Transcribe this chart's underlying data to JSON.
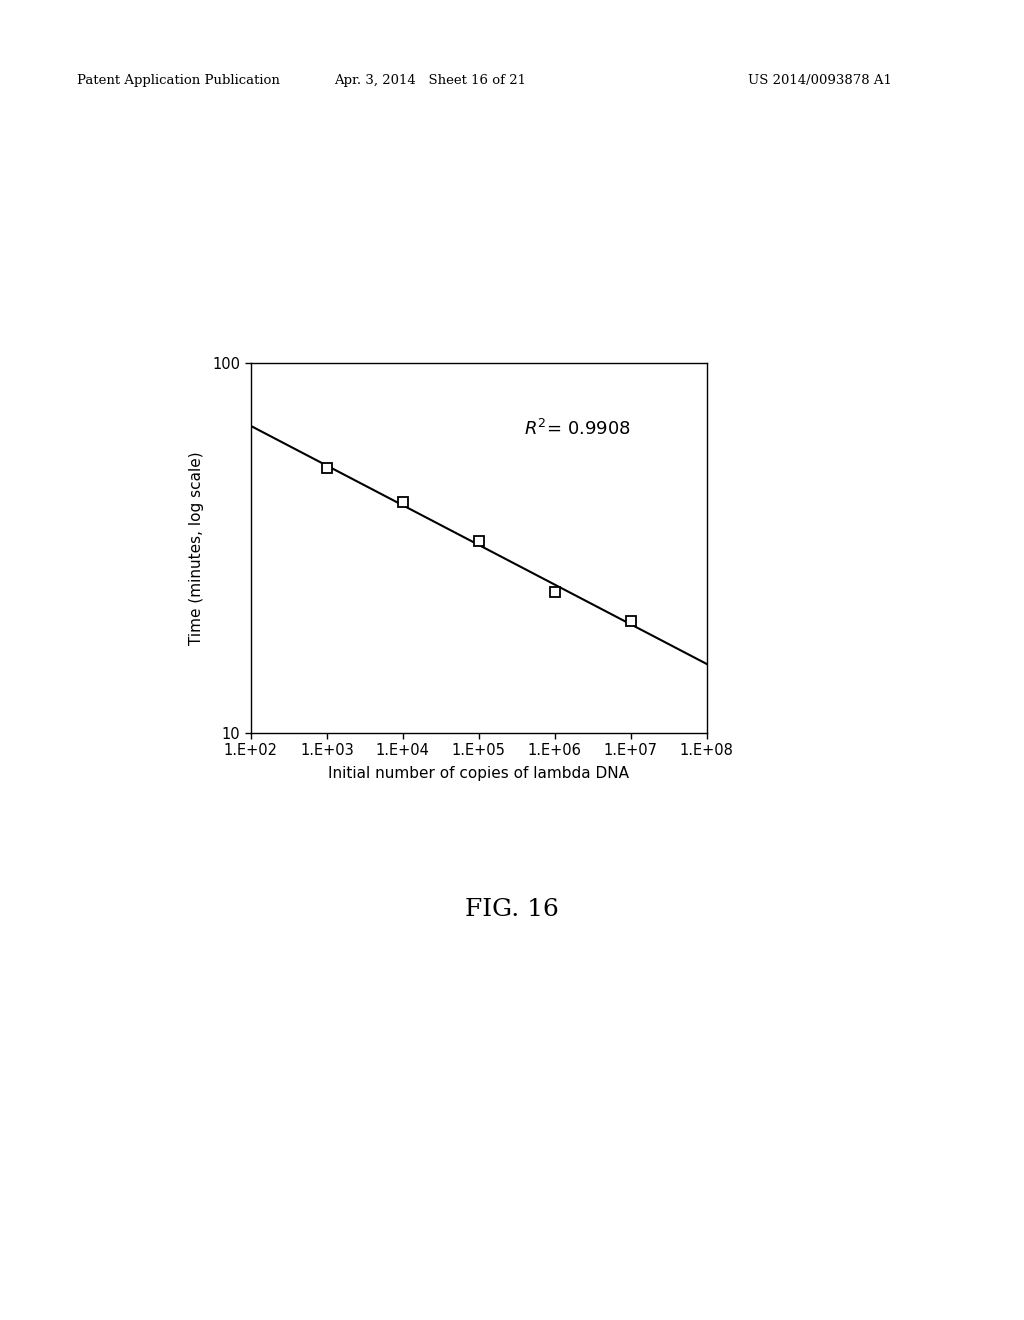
{
  "header_left": "Patent Application Publication",
  "header_mid": "Apr. 3, 2014   Sheet 16 of 21",
  "header_right": "US 2014/0093878 A1",
  "xlabel": "Initial number of copies of lambda DNA",
  "ylabel": "Time (minutes, log scale)",
  "fig_label": "FIG. 16",
  "data_x": [
    1000,
    10000,
    100000,
    1000000,
    10000000
  ],
  "data_y": [
    52,
    42,
    33,
    24,
    20
  ],
  "ylim_log": [
    10,
    100
  ],
  "xlim_log": [
    100,
    100000000
  ],
  "xtick_labels": [
    "1.E+02",
    "1.E+03",
    "1.E+04",
    "1.E+05",
    "1.E+06",
    "1.E+07",
    "1.E+08"
  ],
  "xtick_values": [
    100,
    1000,
    10000,
    100000,
    1000000,
    10000000,
    100000000
  ],
  "ytick_labels": [
    "10",
    "100"
  ],
  "ytick_values": [
    10,
    100
  ],
  "r2_annotation": "$R^{2}$= 0.9908",
  "background_color": "#ffffff",
  "line_color": "#000000",
  "marker": "s",
  "marker_size": 7,
  "marker_facecolor": "#ffffff",
  "marker_edgecolor": "#000000",
  "marker_edgewidth": 1.3
}
